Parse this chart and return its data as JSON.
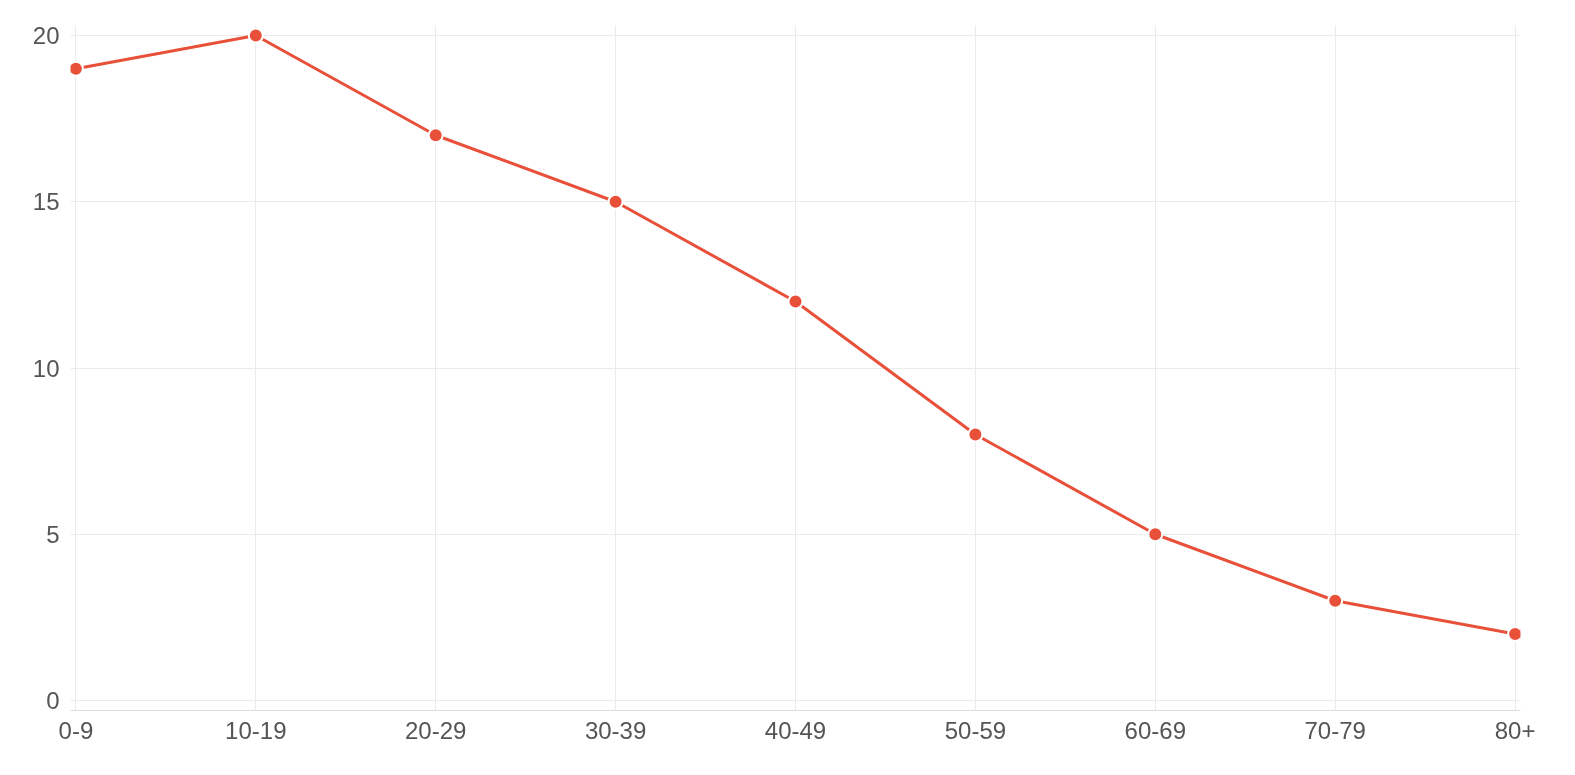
{
  "chart_data": {
    "type": "line",
    "categories": [
      "0-9",
      "10-19",
      "20-29",
      "30-39",
      "40-49",
      "50-59",
      "60-69",
      "70-79",
      "80+"
    ],
    "series": [
      {
        "color": "#e8503a",
        "values": [
          19,
          20,
          17,
          15,
          12,
          8,
          5,
          3,
          2
        ]
      }
    ],
    "ylim": [
      0,
      20
    ],
    "yticks": [
      0,
      5,
      10,
      15,
      20
    ],
    "grid": true,
    "marker": "circle",
    "line_style": "solid"
  }
}
